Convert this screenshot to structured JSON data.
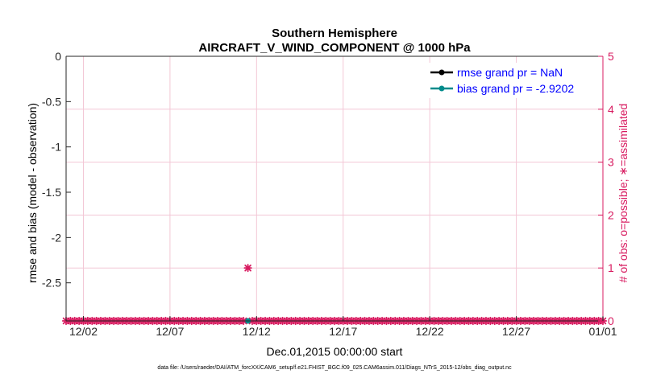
{
  "chart_data": {
    "type": "line",
    "title": [
      "Southern Hemisphere",
      "AIRCRAFT_V_WIND_COMPONENT @ 1000 hPa"
    ],
    "xlabel": "Dec.01,2015 00:00:00 start",
    "ylabel_left": "rmse and bias (model - observation)",
    "ylabel_right": "# of obs: o=possible; ∗=assimilated",
    "footer": "data file: /Users/raeder/DAI/ATM_forcXX/CAM6_setup/f.e21.FHIST_BGC.f09_025.CAM6assim.011/Diags_NTrS_2015-12/obs_diag_output.nc",
    "xlim": [
      0.5,
      31.5
    ],
    "ylim_left": [
      -2.92,
      0
    ],
    "ylim_right": [
      0,
      5
    ],
    "x_ticks": [
      1.5,
      6.5,
      11.5,
      16.5,
      21.5,
      26.5,
      31.5
    ],
    "x_tick_labels": [
      "12/02",
      "12/07",
      "12/12",
      "12/17",
      "12/22",
      "12/27",
      "01/01"
    ],
    "y_left_ticks": [
      0,
      -0.5,
      -1,
      -1.5,
      -2,
      -2.5
    ],
    "y_left_tick_labels": [
      "0",
      "-0.5",
      "-1",
      "-1.5",
      "-2",
      "-2.5"
    ],
    "y_right_ticks": [
      0,
      1,
      2,
      3,
      4,
      5
    ],
    "y_right_tick_labels": [
      "0",
      "1",
      "2",
      "3",
      "4",
      "5"
    ],
    "series": [
      {
        "name": "rmse grand pr = NaN",
        "color": "#000000",
        "values": []
      },
      {
        "name": "bias grand pr = -2.9202",
        "color": "#008b8b",
        "points": [
          {
            "x": 11.0,
            "y": -2.9202
          }
        ]
      }
    ],
    "obs_series": {
      "name": "# of obs",
      "color": "#d81b60",
      "x_start": 0.5,
      "x_end": 31.5,
      "step": 0.25,
      "value": 0,
      "peak": {
        "x": 11.0,
        "value": 1
      },
      "gap": [
        10.8,
        11.2
      ]
    }
  }
}
